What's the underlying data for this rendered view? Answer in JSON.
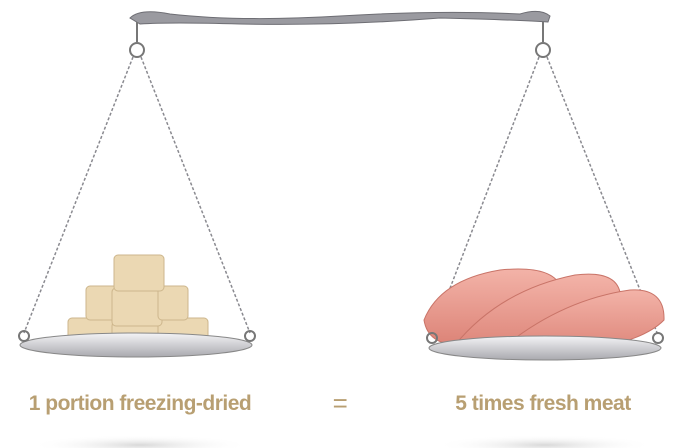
{
  "captions": {
    "left": "1 portion freezing-dried",
    "equals": "=",
    "right": "5 times fresh meat"
  },
  "colors": {
    "caption": "#b89f72",
    "metal": "#8f8f95",
    "cube": "#ead7b2",
    "meat": "#ea9a8e"
  }
}
